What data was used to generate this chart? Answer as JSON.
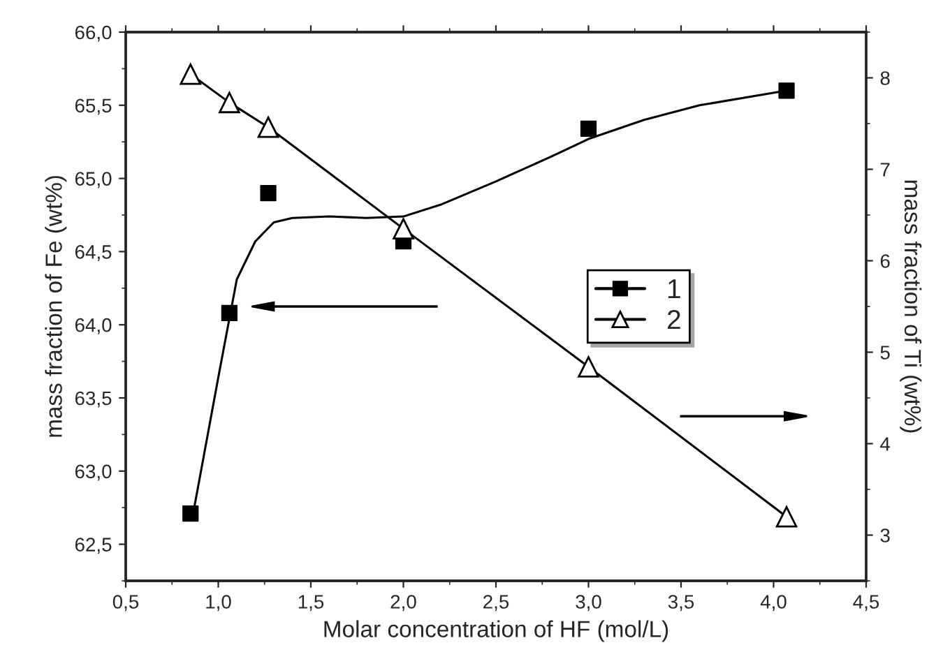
{
  "chart_data": {
    "type": "scatter",
    "xlabel": "Molar concentration of HF (mol/L)",
    "ylabel": "mass fraction of Fe (wt%)",
    "y2label": "mass fraction of Ti (wt%)",
    "xlim": [
      0.5,
      4.5
    ],
    "xticks": [
      {
        "value": 0.5,
        "label": "0,5"
      },
      {
        "value": 1.0,
        "label": "1,0"
      },
      {
        "value": 1.5,
        "label": "1,5"
      },
      {
        "value": 2.0,
        "label": "2,0"
      },
      {
        "value": 2.5,
        "label": "2,5"
      },
      {
        "value": 3.0,
        "label": "3,0"
      },
      {
        "value": 3.5,
        "label": "3,5"
      },
      {
        "value": 4.0,
        "label": "4,0"
      },
      {
        "value": 4.5,
        "label": "4,5"
      }
    ],
    "ylim": [
      62.25,
      66.0
    ],
    "yticks": [
      {
        "value": 62.5,
        "label": "62,5"
      },
      {
        "value": 63.0,
        "label": "63,0"
      },
      {
        "value": 63.5,
        "label": "63,5"
      },
      {
        "value": 64.0,
        "label": "64,0"
      },
      {
        "value": 64.5,
        "label": "64,5"
      },
      {
        "value": 65.0,
        "label": "65,0"
      },
      {
        "value": 65.5,
        "label": "65,5"
      },
      {
        "value": 66.0,
        "label": "66,0"
      }
    ],
    "y2lim": [
      2.5,
      8.5
    ],
    "y2ticks": [
      3,
      4,
      5,
      6,
      7,
      8
    ],
    "legend": "center right",
    "series": [
      {
        "name": "1",
        "marker": "square",
        "color": "#000000",
        "x": [
          0.85,
          1.06,
          1.27,
          2.0,
          3.0,
          4.07
        ],
        "values": [
          62.71,
          64.08,
          64.9,
          64.57,
          65.34,
          65.6
        ]
      },
      {
        "type": "line",
        "marker": "none",
        "color": "#000000",
        "x": [
          0.87,
          1.0,
          1.1,
          1.2,
          1.3,
          1.4,
          1.6,
          1.8,
          2.0,
          2.2,
          2.5,
          2.8,
          3.0,
          3.3,
          3.6,
          4.07
        ],
        "values": [
          62.75,
          63.64,
          64.31,
          64.57,
          64.7,
          64.73,
          64.74,
          64.73,
          64.74,
          64.82,
          64.98,
          65.15,
          65.27,
          65.4,
          65.5,
          65.6
        ]
      },
      {
        "name": "2",
        "type": "line",
        "axis": "y2",
        "marker": "triangle",
        "color": "#000000",
        "x": [
          0.85,
          1.06,
          1.27,
          2.0,
          3.0,
          4.07
        ],
        "values": [
          8.04,
          7.73,
          7.46,
          6.35,
          4.84,
          3.2
        ]
      }
    ]
  }
}
